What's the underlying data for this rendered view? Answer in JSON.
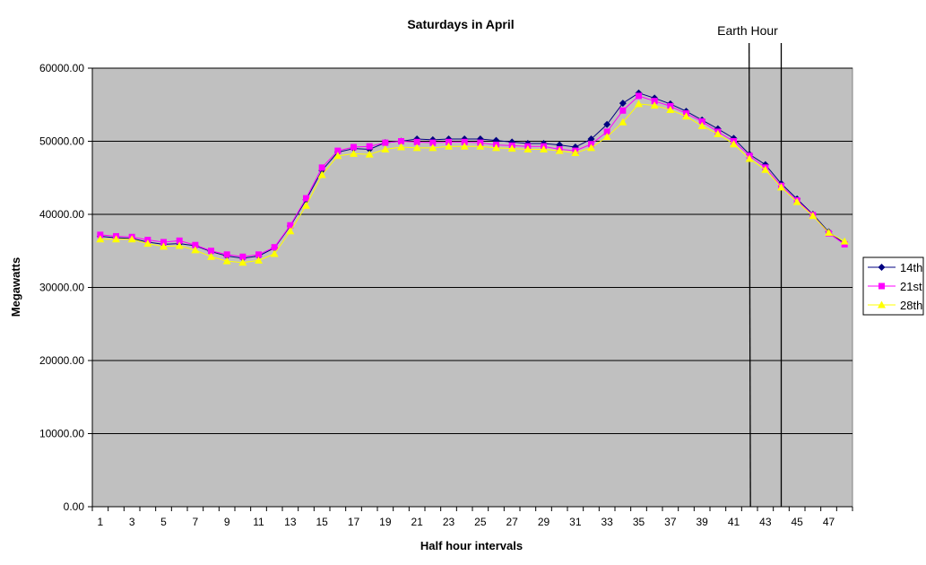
{
  "chart_data": {
    "type": "line",
    "title": "Saturdays in April",
    "xlabel": "Half hour intervals",
    "ylabel": "Megawatts",
    "ylim": [
      0,
      60000
    ],
    "yticks": [
      "0.00",
      "10000.00",
      "20000.00",
      "30000.00",
      "40000.00",
      "50000.00",
      "60000.00"
    ],
    "ytick_values": [
      0,
      10000,
      20000,
      30000,
      40000,
      50000,
      60000
    ],
    "categories": [
      1,
      2,
      3,
      4,
      5,
      6,
      7,
      8,
      9,
      10,
      11,
      12,
      13,
      14,
      15,
      16,
      17,
      18,
      19,
      20,
      21,
      22,
      23,
      24,
      25,
      26,
      27,
      28,
      29,
      30,
      31,
      32,
      33,
      34,
      35,
      36,
      37,
      38,
      39,
      40,
      41,
      42,
      43,
      44,
      45,
      46,
      47,
      48
    ],
    "xtick_labels_shown": "odd",
    "grid": "horizontal major",
    "plot_background": "#c0c0c0",
    "legend_position": "right",
    "series": [
      {
        "name": "14th",
        "color": "#000080",
        "marker": "diamond",
        "values": [
          37000,
          36800,
          36700,
          36200,
          35900,
          36000,
          35700,
          34900,
          34300,
          34000,
          34300,
          35400,
          38400,
          42000,
          46000,
          48500,
          49000,
          48900,
          49800,
          50000,
          50300,
          50200,
          50300,
          50300,
          50300,
          50100,
          49900,
          49700,
          49700,
          49500,
          49200,
          50300,
          52300,
          55200,
          56600,
          55900,
          55100,
          54100,
          52900,
          51700,
          50400,
          48200,
          46800,
          44200,
          42100,
          40000,
          37600,
          36000
        ]
      },
      {
        "name": "21st",
        "color": "#ff00ff",
        "marker": "square",
        "values": [
          37200,
          37000,
          36900,
          36500,
          36200,
          36400,
          35800,
          35000,
          34500,
          34200,
          34500,
          35500,
          38500,
          42200,
          46400,
          48700,
          49200,
          49300,
          49800,
          50000,
          49900,
          49800,
          49900,
          49900,
          49800,
          49500,
          49400,
          49300,
          49300,
          48900,
          48700,
          49600,
          51300,
          54200,
          56200,
          55500,
          54800,
          53800,
          52700,
          51300,
          50000,
          48000,
          46400,
          43900,
          41900,
          39900,
          37400,
          35900
        ]
      },
      {
        "name": "28th",
        "color": "#ffff00",
        "marker": "triangle",
        "values": [
          36600,
          36600,
          36600,
          36000,
          35600,
          35700,
          35100,
          34200,
          33600,
          33400,
          33700,
          34600,
          37700,
          41200,
          45400,
          48000,
          48300,
          48200,
          48900,
          49200,
          49100,
          49100,
          49300,
          49300,
          49300,
          49100,
          49000,
          48900,
          48900,
          48700,
          48400,
          49100,
          50600,
          52600,
          55100,
          54900,
          54300,
          53400,
          52100,
          51000,
          49600,
          47600,
          46100,
          43700,
          41700,
          39800,
          37500,
          36300
        ]
      }
    ],
    "annotations": [
      {
        "text": "Earth Hour",
        "x_range": [
          41.5,
          43.5
        ]
      }
    ]
  }
}
